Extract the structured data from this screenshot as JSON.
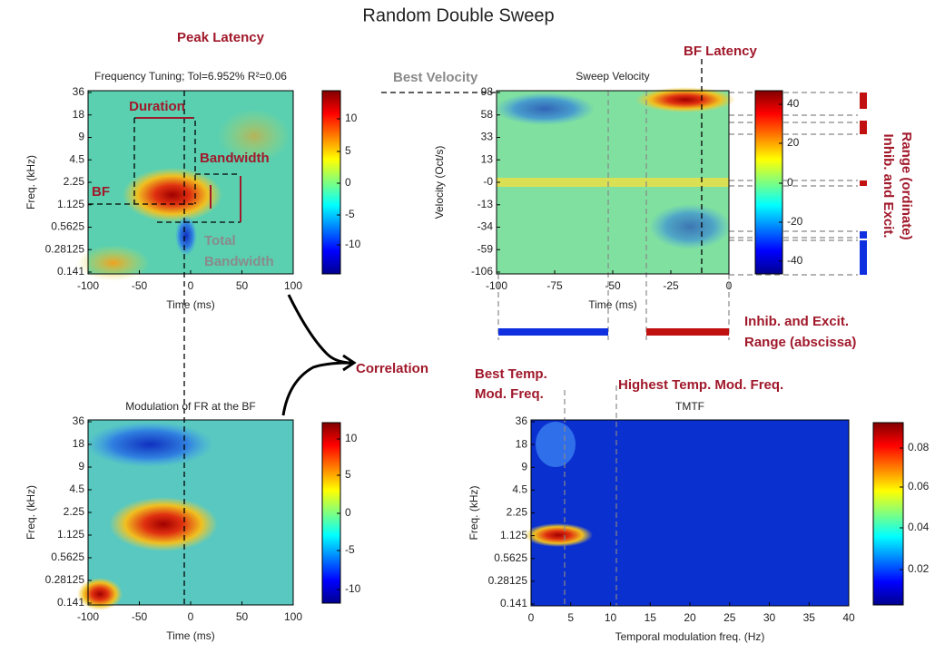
{
  "title": "Random Double Sweep",
  "panels": [
    {
      "title": "Frequency Tuning; Tol=6.952% R²=0.06",
      "xlabel": "Time (ms)",
      "ylabel": "Freq. (kHz)",
      "xticks": [
        "-100",
        "-50",
        "0",
        "50",
        "100"
      ],
      "yticks": [
        "36",
        "18",
        "9",
        "4.5",
        "2.25",
        "1.125",
        "0.5625",
        "0.28125",
        "0.141"
      ],
      "colorbar_ticks": [
        "10",
        "5",
        "0",
        "-5",
        "-10"
      ]
    },
    {
      "title": "Modulation of FR at the BF",
      "xlabel": "Time (ms)",
      "ylabel": "Freq. (kHz)",
      "xticks": [
        "-100",
        "-50",
        "0",
        "50",
        "100"
      ],
      "yticks": [
        "36",
        "18",
        "9",
        "4.5",
        "2.25",
        "1.125",
        "0.5625",
        "0.28125",
        "0.141"
      ],
      "colorbar_ticks": [
        "10",
        "5",
        "0",
        "-5",
        "-10"
      ]
    },
    {
      "title": "Sweep Velocity",
      "xlabel": "Time (ms)",
      "ylabel": "Velocity (Oct/s)",
      "xticks": [
        "-100",
        "-75",
        "-50",
        "-25",
        "0"
      ],
      "yticks": [
        "98",
        "58",
        "33",
        "13",
        "-0",
        "-13",
        "-34",
        "-59",
        "-106"
      ],
      "colorbar_ticks": [
        "40",
        "20",
        "0",
        "-20",
        "-40"
      ]
    },
    {
      "title": "TMTF",
      "xlabel": "Temporal modulation freq. (Hz)",
      "ylabel": "Freq. (kHz)",
      "xticks": [
        "0",
        "5",
        "10",
        "15",
        "20",
        "25",
        "30",
        "35",
        "40"
      ],
      "yticks": [
        "36",
        "18",
        "9",
        "4.5",
        "2.25",
        "1.125",
        "0.5625",
        "0.28125",
        "0.141"
      ],
      "colorbar_ticks": [
        "0.08",
        "0.06",
        "0.04",
        "0.02"
      ]
    }
  ],
  "annotations": {
    "peak_latency": "Peak Latency",
    "duration": "Duration",
    "bandwidth": "Bandwidth",
    "bf": "BF",
    "total_bandwidth": [
      "Total",
      "Bandwidth"
    ],
    "best_velocity": "Best Velocity",
    "bf_latency": "BF Latency",
    "ordinate_range": [
      "Inhib. and Excit.",
      "Range (ordinate)"
    ],
    "abscissa_range": [
      "Inhib. and Excit.",
      "Range (abscissa)"
    ],
    "correlation": "Correlation",
    "best_temp_mod_freq": [
      "Best Temp.",
      "Mod. Freq."
    ],
    "highest_temp_mod_freq": "Highest Temp. Mod. Freq."
  }
}
